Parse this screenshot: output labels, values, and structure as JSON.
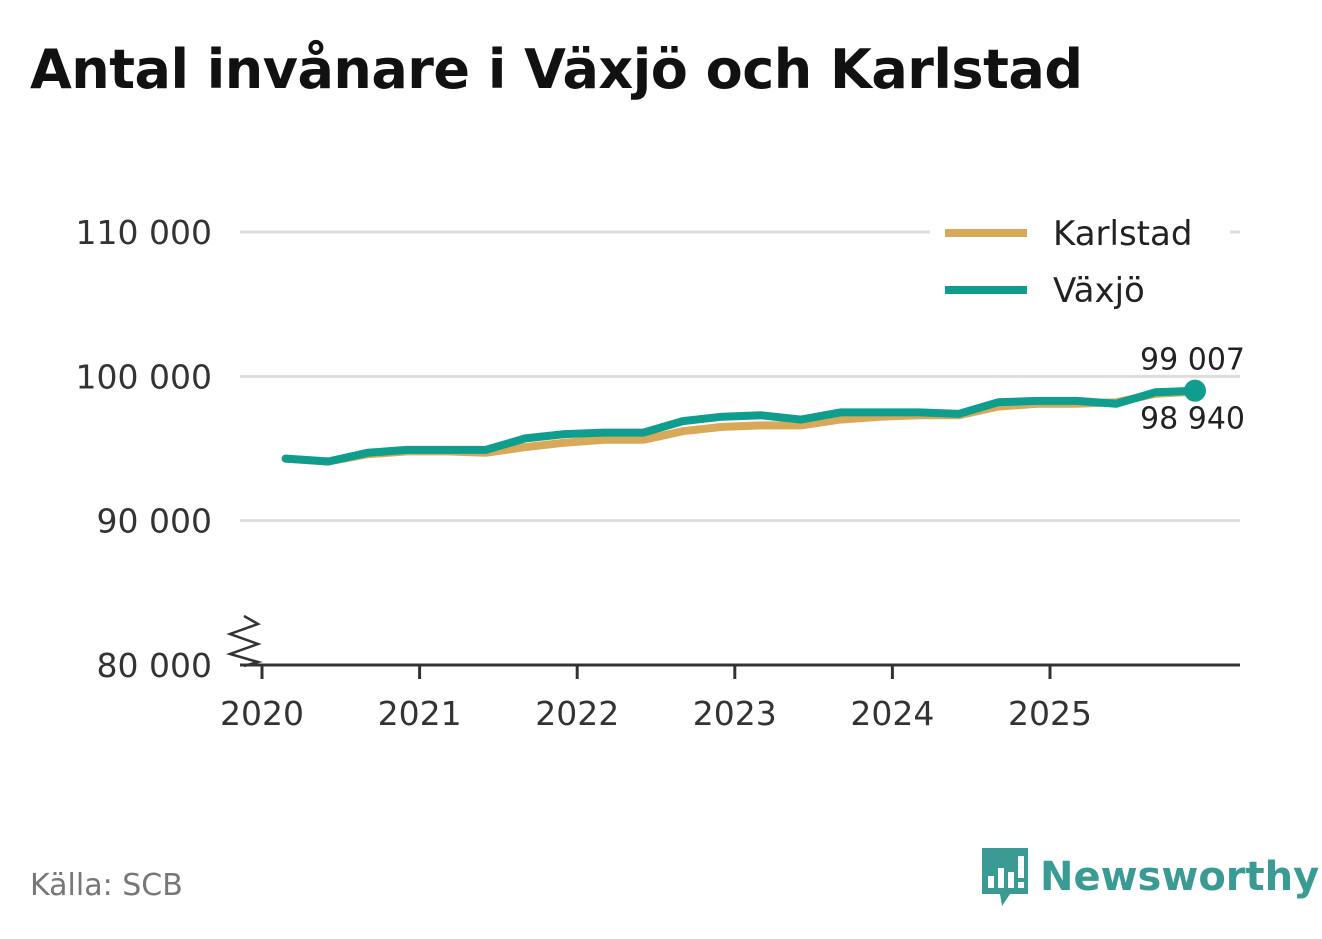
{
  "title": "Antal invånare i Växjö och Karlstad",
  "source": "Källa: SCB",
  "brand": {
    "name": "Newsworthy"
  },
  "colors": {
    "karlstad": "#d9a95a",
    "vaxjo": "#0f9e8e",
    "grid": "#dddddd",
    "axis": "#333333",
    "brand": "#3a9a94"
  },
  "chart_data": {
    "type": "line",
    "title": "Antal invånare i Växjö och Karlstad",
    "xlabel": "",
    "ylabel": "",
    "ylim": [
      80000,
      110000
    ],
    "xlim": [
      2020.0,
      2026.2
    ],
    "y_ticks": [
      {
        "value": 110000,
        "label": "110 000"
      },
      {
        "value": 100000,
        "label": "100 000"
      },
      {
        "value": 90000,
        "label": "90 000"
      },
      {
        "value": 80000,
        "label": "80 000"
      }
    ],
    "x_ticks": [
      {
        "value": 2020,
        "label": "2020"
      },
      {
        "value": 2021,
        "label": "2021"
      },
      {
        "value": 2022,
        "label": "2022"
      },
      {
        "value": 2023,
        "label": "2023"
      },
      {
        "value": 2024,
        "label": "2024"
      },
      {
        "value": 2025,
        "label": "2025"
      }
    ],
    "axis_break": true,
    "grid": true,
    "legend_position": "top-right",
    "x": [
      2020.15,
      2020.42,
      2020.67,
      2020.92,
      2021.17,
      2021.42,
      2021.67,
      2021.92,
      2022.17,
      2022.42,
      2022.67,
      2022.92,
      2023.17,
      2023.42,
      2023.67,
      2023.92,
      2024.17,
      2024.42,
      2024.67,
      2024.92,
      2025.17,
      2025.42,
      2025.67,
      2025.92
    ],
    "series": [
      {
        "name": "Karlstad",
        "color": "#d9a95a",
        "values": [
          94300,
          94100,
          94600,
          94800,
          94800,
          94700,
          95100,
          95400,
          95600,
          95600,
          96200,
          96500,
          96600,
          96600,
          97000,
          97200,
          97300,
          97300,
          97900,
          98100,
          98100,
          98200,
          98800,
          98940
        ],
        "end_label": "98 940"
      },
      {
        "name": "Växjö",
        "color": "#0f9e8e",
        "values": [
          94300,
          94100,
          94700,
          94900,
          94900,
          94900,
          95700,
          96000,
          96100,
          96100,
          96900,
          97200,
          97300,
          97000,
          97500,
          97500,
          97500,
          97400,
          98200,
          98300,
          98300,
          98100,
          98900,
          99007
        ],
        "end_label": "99 007"
      }
    ]
  }
}
